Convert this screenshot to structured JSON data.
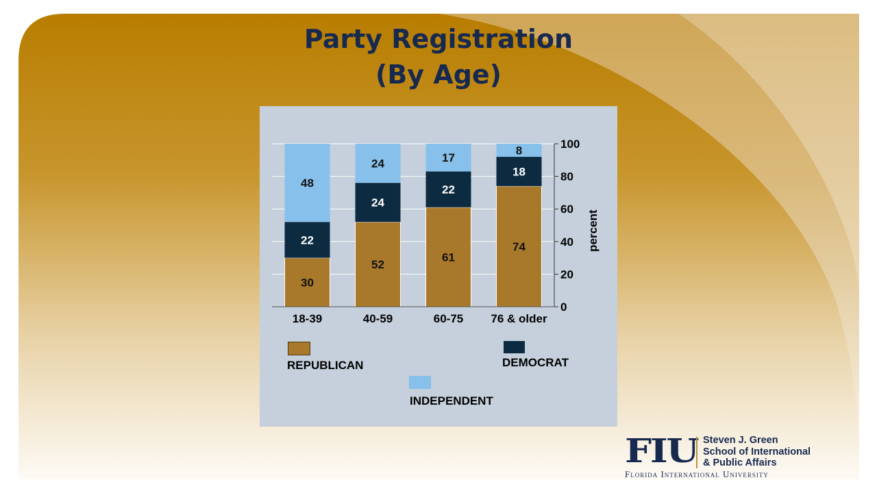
{
  "slide": {
    "title_line1": "Party Registration",
    "title_line2": "(By Age)"
  },
  "chart_data": {
    "type": "bar",
    "stacked": true,
    "categories": [
      "18-39",
      "40-59",
      "60-75",
      "76 & older"
    ],
    "series": [
      {
        "name": "REPUBLICAN",
        "values": [
          30,
          52,
          61,
          74
        ],
        "color": "#a8792a",
        "label_color": "#111111"
      },
      {
        "name": "DEMOCRAT",
        "values": [
          22,
          24,
          22,
          18
        ],
        "color": "#0d2b40",
        "label_color": "#ffffff"
      },
      {
        "name": "INDEPENDENT",
        "values": [
          48,
          24,
          17,
          8
        ],
        "color": "#87c0ea",
        "label_color": "#111111"
      }
    ],
    "ylabel": "percent",
    "ylim": [
      0,
      100
    ],
    "yticks": [
      0,
      20,
      40,
      60,
      80,
      100
    ],
    "y_axis_side": "right",
    "grid": true,
    "legend_placement": "bottom"
  },
  "logo": {
    "mark": "FIU",
    "school_line1": "Steven J. Green",
    "school_line2": "School of International",
    "school_line3": "& Public Affairs",
    "university": "Florida International University"
  },
  "colors": {
    "title": "#17294f",
    "panel": "#c5d0dc",
    "gold_dark": "#b87f00",
    "gold_light": "#f8f1e6"
  }
}
